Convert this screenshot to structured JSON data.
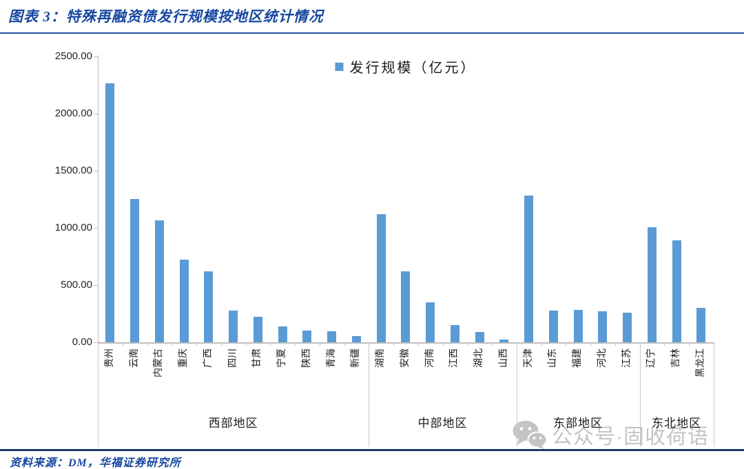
{
  "header": {
    "title": "图表 3：特殊再融资债发行规模按地区统计情况"
  },
  "watermark": {
    "text": "公众号·固收荷语",
    "icon": "wechat-icon"
  },
  "footer": {
    "source": "资料来源：DM，华福证券研究所"
  },
  "colors": {
    "title_blue": "#1747A0",
    "rule_top": "#2353A8",
    "rule_bottom": "#1F3864",
    "axis_gray": "#BFBFBF",
    "divider_gray": "#C9C9C9",
    "watermark_gray": "#C4C4C4",
    "bar_blue": "#5B9BD5"
  },
  "chart_data": {
    "type": "bar",
    "title": "",
    "legend": "发行规模（亿元）",
    "legend_position": "top-center",
    "grid": false,
    "xlabel": "",
    "ylabel": "",
    "ylim": [
      0,
      2500
    ],
    "ytick_labels": [
      "0.00",
      "500.00",
      "1000.00",
      "1500.00",
      "2000.00",
      "2500.00"
    ],
    "bar_color": "#5B9BD5",
    "categories": [
      "贵州",
      "云南",
      "内蒙古",
      "重庆",
      "广西",
      "四川",
      "甘肃",
      "宁夏",
      "陕西",
      "青海",
      "新疆",
      "湖南",
      "安徽",
      "河南",
      "江西",
      "湖北",
      "山西",
      "天津",
      "山东",
      "福建",
      "河北",
      "江苏",
      "辽宁",
      "吉林",
      "黑龙江"
    ],
    "values": [
      2264,
      1256,
      1067,
      722,
      623,
      278,
      222,
      137,
      102,
      96,
      55,
      1122,
      622,
      347,
      153,
      90,
      25,
      1286,
      277,
      282,
      271,
      257,
      1006,
      892,
      302
    ],
    "groups": [
      {
        "label": "西部地区",
        "count": 11
      },
      {
        "label": "中部地区",
        "count": 6
      },
      {
        "label": "东部地区",
        "count": 5
      },
      {
        "label": "东北地区",
        "count": 3
      }
    ]
  }
}
